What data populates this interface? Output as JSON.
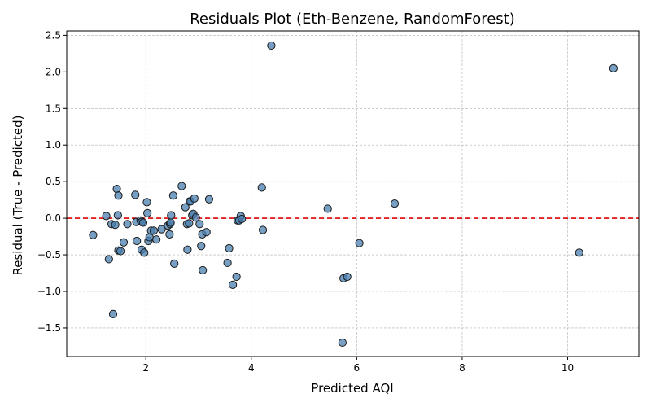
{
  "chart_data": {
    "type": "scatter",
    "title": "Residuals Plot (Eth-Benzene, RandomForest)",
    "xlabel": "Predicted AQI",
    "ylabel": "Residual (True - Predicted)",
    "xlim": [
      0.5,
      11.35
    ],
    "ylim": [
      -1.89,
      2.56
    ],
    "xticks": [
      2,
      4,
      6,
      8,
      10
    ],
    "yticks": [
      -1.5,
      -1.0,
      -0.5,
      0.0,
      0.5,
      1.0,
      1.5,
      2.0,
      2.5
    ],
    "xtick_labels": [
      "2",
      "4",
      "6",
      "8",
      "10"
    ],
    "ytick_labels": [
      "−1.5",
      "−1.0",
      "−0.5",
      "0.0",
      "0.5",
      "1.0",
      "1.5",
      "2.0",
      "2.5"
    ],
    "grid": true,
    "reference_line": {
      "y": 0,
      "style": "dashed",
      "color": "#e00000"
    },
    "marker_color": "#4a7fb0",
    "points": [
      [
        1.0,
        -0.23
      ],
      [
        1.25,
        0.03
      ],
      [
        1.3,
        -0.56
      ],
      [
        1.35,
        -0.08
      ],
      [
        1.38,
        -1.31
      ],
      [
        1.42,
        -0.09
      ],
      [
        1.45,
        0.4
      ],
      [
        1.47,
        0.04
      ],
      [
        1.48,
        0.31
      ],
      [
        1.48,
        -0.44
      ],
      [
        1.52,
        -0.45
      ],
      [
        1.58,
        -0.33
      ],
      [
        1.65,
        -0.08
      ],
      [
        1.8,
        0.32
      ],
      [
        1.82,
        -0.05
      ],
      [
        1.83,
        -0.31
      ],
      [
        1.9,
        -0.03
      ],
      [
        1.92,
        -0.05
      ],
      [
        1.92,
        -0.43
      ],
      [
        1.95,
        -0.06
      ],
      [
        1.97,
        -0.47
      ],
      [
        2.02,
        0.22
      ],
      [
        2.03,
        0.07
      ],
      [
        2.05,
        -0.31
      ],
      [
        2.07,
        -0.26
      ],
      [
        2.1,
        -0.17
      ],
      [
        2.15,
        -0.17
      ],
      [
        2.2,
        -0.29
      ],
      [
        2.3,
        -0.15
      ],
      [
        2.42,
        -0.1
      ],
      [
        2.45,
        -0.22
      ],
      [
        2.46,
        -0.08
      ],
      [
        2.47,
        -0.06
      ],
      [
        2.48,
        0.04
      ],
      [
        2.52,
        0.31
      ],
      [
        2.54,
        -0.62
      ],
      [
        2.68,
        0.44
      ],
      [
        2.75,
        0.15
      ],
      [
        2.78,
        -0.08
      ],
      [
        2.79,
        -0.43
      ],
      [
        2.82,
        -0.07
      ],
      [
        2.83,
        0.23
      ],
      [
        2.85,
        0.23
      ],
      [
        2.88,
        0.04
      ],
      [
        2.9,
        0.06
      ],
      [
        2.92,
        0.27
      ],
      [
        2.95,
        0.01
      ],
      [
        3.02,
        -0.08
      ],
      [
        3.05,
        -0.38
      ],
      [
        3.07,
        -0.22
      ],
      [
        3.08,
        -0.71
      ],
      [
        3.15,
        -0.19
      ],
      [
        3.2,
        0.26
      ],
      [
        3.55,
        -0.61
      ],
      [
        3.58,
        -0.41
      ],
      [
        3.65,
        -0.91
      ],
      [
        3.72,
        -0.8
      ],
      [
        3.74,
        -0.03
      ],
      [
        3.77,
        -0.03
      ],
      [
        3.8,
        0.03
      ],
      [
        3.82,
        -0.01
      ],
      [
        4.2,
        0.42
      ],
      [
        4.22,
        -0.16
      ],
      [
        4.38,
        2.36
      ],
      [
        5.45,
        0.13
      ],
      [
        5.73,
        -1.7
      ],
      [
        5.75,
        -0.82
      ],
      [
        5.82,
        -0.8
      ],
      [
        6.05,
        -0.34
      ],
      [
        6.72,
        0.2
      ],
      [
        10.22,
        -0.47
      ],
      [
        10.87,
        2.05
      ]
    ]
  }
}
